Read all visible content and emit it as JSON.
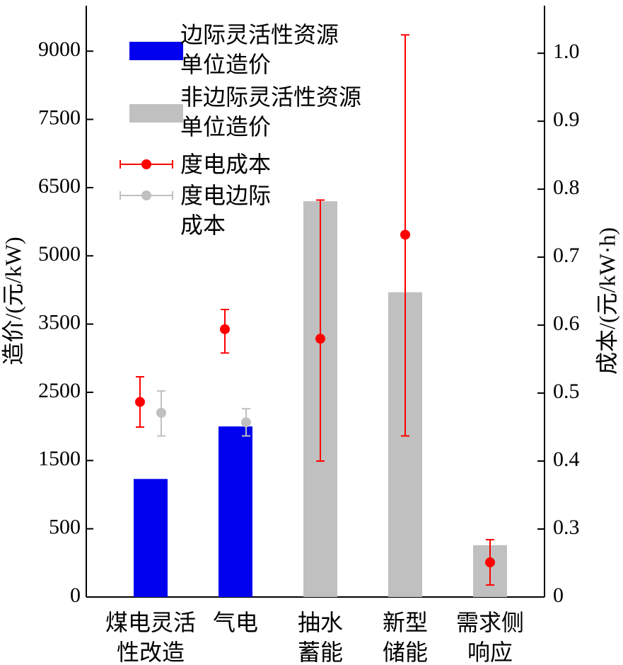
{
  "chart_data": {
    "type": "bar",
    "categories": [
      "煤电灵活性改造",
      "气电",
      "抽水蓄能",
      "新型储能",
      "需求侧响应"
    ],
    "series": [
      {
        "name": "边际灵活性资源单位造价",
        "color": "#0000ee",
        "values": [
          1230,
          2000,
          null,
          null,
          null
        ]
      },
      {
        "name": "非边际灵活性资源单位造价",
        "color": "#c0c0c0",
        "values": [
          null,
          null,
          6200,
          4200,
          380
        ]
      },
      {
        "name": "度电成本",
        "color": "#ff0000",
        "type": "errorbar",
        "axis": "y2",
        "values": [
          0.487,
          0.594,
          0.58,
          0.733,
          0.153
        ],
        "err_minus": [
          0.037,
          0.035,
          0.18,
          0.296,
          0.1
        ],
        "err_plus": [
          0.037,
          0.029,
          0.204,
          0.294,
          0.1
        ]
      },
      {
        "name": "度电边际成本",
        "color": "#c0c0c0",
        "type": "errorbar",
        "axis": "y2",
        "values": [
          0.471,
          0.457,
          null,
          null,
          null
        ],
        "err_minus": [
          0.034,
          0.02,
          null,
          null,
          null
        ],
        "err_plus": [
          0.032,
          0.02,
          null,
          null,
          null
        ]
      }
    ],
    "ylabel": "造价/(元/kW)",
    "y2label": "成本/(元/kW·h)",
    "yscale": "piecewise",
    "ylim": [
      0,
      10000
    ],
    "yticks": [
      0,
      500,
      1500,
      2500,
      3500,
      5000,
      6500,
      7500,
      9000
    ],
    "y2lim": [
      0,
      1.07
    ],
    "y2ticks": [
      0,
      0.3,
      0.4,
      0.5,
      0.6,
      0.7,
      0.8,
      0.9,
      {
        "value": 1,
        "label": "1.0"
      }
    ]
  }
}
